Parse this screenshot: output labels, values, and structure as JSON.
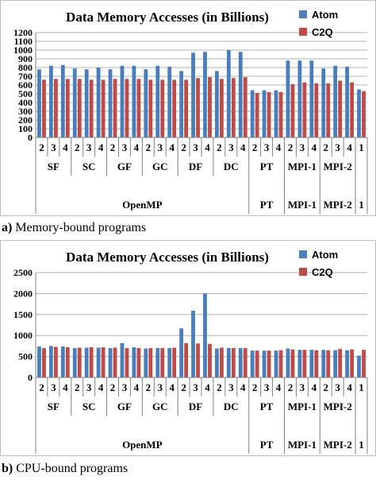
{
  "charts": [
    {
      "caption_letter": "a)",
      "caption_text": "Memory-bound programs",
      "chart_data": {
        "type": "bar",
        "title": "Data Memory Accesses (in Billions)",
        "xlabel": "",
        "ylabel": "",
        "ylim": [
          0,
          1200
        ],
        "yticks": [
          0,
          100,
          200,
          300,
          400,
          500,
          600,
          700,
          800,
          900,
          1000,
          1100,
          1200
        ],
        "grid": true,
        "legend": "top-right",
        "categories": [
          "2",
          "3",
          "4",
          "2",
          "3",
          "4",
          "2",
          "3",
          "4",
          "2",
          "3",
          "4",
          "2",
          "3",
          "4",
          "2",
          "3",
          "4",
          "2",
          "3",
          "4",
          "2",
          "3",
          "4",
          "2",
          "3",
          "4",
          "1"
        ],
        "groups": [
          {
            "label": "SF",
            "span": 3
          },
          {
            "label": "SC",
            "span": 3
          },
          {
            "label": "GF",
            "span": 3
          },
          {
            "label": "GC",
            "span": 3
          },
          {
            "label": "DF",
            "span": 3
          },
          {
            "label": "DC",
            "span": 3
          },
          {
            "label": "PT",
            "span": 3
          },
          {
            "label": "MPI-1",
            "span": 3
          },
          {
            "label": "MPI-2",
            "span": 3
          },
          {
            "label": "",
            "span": 1
          }
        ],
        "supergroups": [
          {
            "label": "OpenMP",
            "span": 18
          },
          {
            "label": "PT",
            "span": 3
          },
          {
            "label": "MPI-1",
            "span": 3
          },
          {
            "label": "MPI-2",
            "span": 3
          },
          {
            "label": "1",
            "span": 1
          }
        ],
        "series": [
          {
            "name": "Atom",
            "color": "#4a7ebb",
            "values": [
              780,
              820,
              830,
              790,
              780,
              800,
              780,
              820,
              820,
              780,
              820,
              810,
              760,
              970,
              980,
              760,
              1000,
              980,
              540,
              540,
              540,
              880,
              880,
              880,
              790,
              820,
              810,
              550
            ]
          },
          {
            "name": "C2Q",
            "color": "#be4b48",
            "values": [
              660,
              670,
              670,
              670,
              660,
              660,
              670,
              670,
              670,
              660,
              660,
              660,
              660,
              680,
              690,
              670,
              680,
              690,
              510,
              520,
              520,
              610,
              630,
              620,
              620,
              650,
              630,
              530
            ]
          }
        ]
      }
    },
    {
      "caption_letter": "b)",
      "caption_text": "CPU-bound programs",
      "chart_data": {
        "type": "bar",
        "title": "Data Memory Accesses (in Billions)",
        "xlabel": "",
        "ylabel": "",
        "ylim": [
          0,
          2500
        ],
        "yticks": [
          0,
          500,
          1000,
          1500,
          2000,
          2500
        ],
        "grid": true,
        "legend": "top-right",
        "categories": [
          "2",
          "3",
          "4",
          "2",
          "3",
          "4",
          "2",
          "3",
          "4",
          "2",
          "3",
          "4",
          "2",
          "3",
          "4",
          "2",
          "3",
          "4",
          "2",
          "3",
          "4",
          "2",
          "3",
          "4",
          "2",
          "3",
          "4",
          "1"
        ],
        "groups": [
          {
            "label": "SF",
            "span": 3
          },
          {
            "label": "SC",
            "span": 3
          },
          {
            "label": "GF",
            "span": 3
          },
          {
            "label": "GC",
            "span": 3
          },
          {
            "label": "DF",
            "span": 3
          },
          {
            "label": "DC",
            "span": 3
          },
          {
            "label": "PT",
            "span": 3
          },
          {
            "label": "MPI-1",
            "span": 3
          },
          {
            "label": "MPI-2",
            "span": 3
          },
          {
            "label": "",
            "span": 1
          }
        ],
        "supergroups": [
          {
            "label": "OpenMP",
            "span": 18
          },
          {
            "label": "PT",
            "span": 3
          },
          {
            "label": "MPI-1",
            "span": 3
          },
          {
            "label": "MPI-2",
            "span": 3
          },
          {
            "label": "1",
            "span": 1
          }
        ],
        "series": [
          {
            "name": "Atom",
            "color": "#4a7ebb",
            "values": [
              740,
              750,
              740,
              700,
              710,
              710,
              700,
              820,
              720,
              690,
              700,
              700,
              1170,
              1590,
              2000,
              690,
              700,
              700,
              640,
              640,
              640,
              690,
              660,
              660,
              660,
              650,
              650,
              520
            ]
          },
          {
            "name": "C2Q",
            "color": "#be4b48",
            "values": [
              700,
              730,
              720,
              710,
              720,
              720,
              710,
              700,
              700,
              700,
              700,
              710,
              820,
              810,
              800,
              710,
              700,
              700,
              640,
              640,
              650,
              670,
              660,
              650,
              650,
              680,
              670,
              660
            ]
          }
        ]
      }
    }
  ]
}
